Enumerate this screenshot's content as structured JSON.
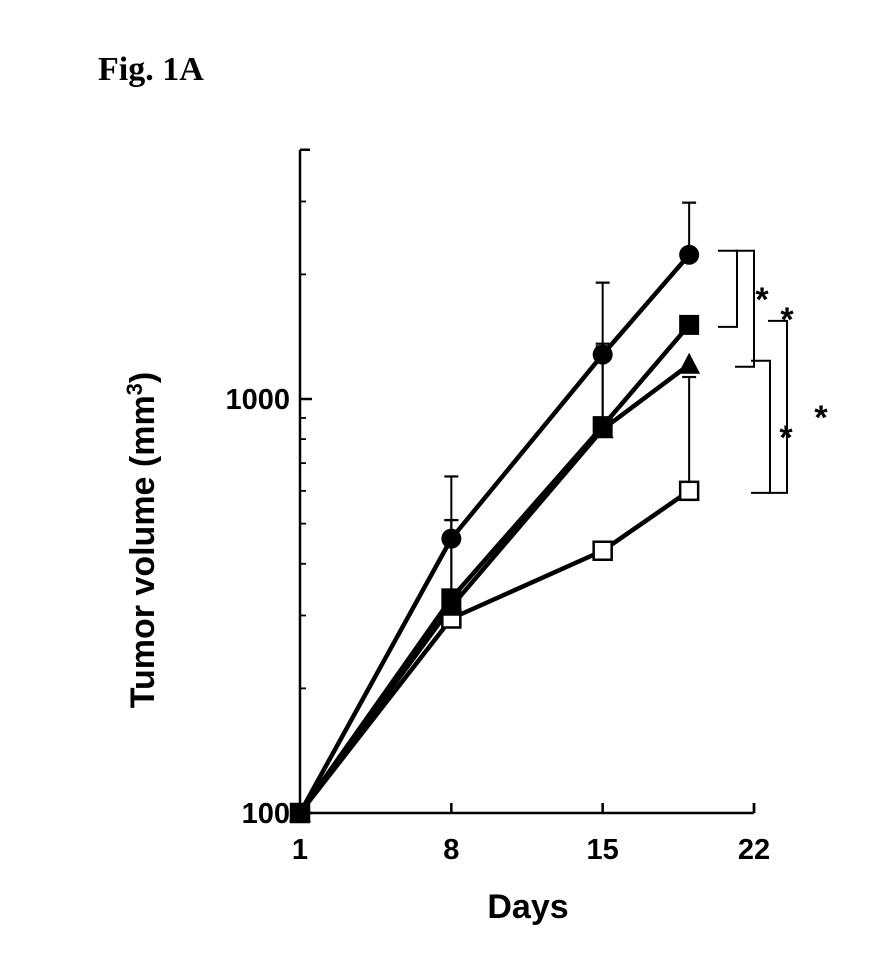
{
  "figure_label": "Fig. 1A",
  "chart_data": {
    "type": "line",
    "xlabel": "Days",
    "ylabel": "Tumor volume (mm",
    "ylabel_superscript": "3",
    "ylabel_close": ")",
    "y_scale": "log",
    "xlim": [
      1,
      22
    ],
    "ylim": [
      100,
      4000
    ],
    "x_ticks": [
      1,
      8,
      15,
      22
    ],
    "x_tick_labels": [
      "1",
      "8",
      "15",
      "22"
    ],
    "y_ticks": [
      100,
      1000
    ],
    "y_tick_labels": [
      "100",
      "1000"
    ],
    "grid": false,
    "x": [
      1,
      8,
      15,
      19
    ],
    "series": [
      {
        "marker": "filled-circle",
        "values": [
          100,
          460,
          1280,
          2230
        ],
        "error_upper": [
          100,
          650,
          1910,
          2980
        ]
      },
      {
        "marker": "filled-square",
        "values": [
          100,
          330,
          860,
          1510
        ],
        "error_upper": [
          100,
          510,
          1340,
          1510
        ]
      },
      {
        "marker": "filled-triangle",
        "values": [
          100,
          315,
          845,
          1210
        ],
        "error_upper": [
          100,
          510,
          1360,
          1210
        ]
      },
      {
        "marker": "open-square",
        "values": [
          100,
          295,
          430,
          600
        ],
        "error_upper": [
          100,
          295,
          430,
          1130
        ]
      }
    ],
    "significance": [
      {
        "label": "*",
        "from_value": 2230,
        "to_value": 1510
      },
      {
        "label": "*",
        "from_value": 2230,
        "to_value": 1210
      },
      {
        "label": "*",
        "from_value": 1210,
        "to_value": 600
      },
      {
        "label": "*",
        "from_value": 1510,
        "to_value": 600
      }
    ]
  }
}
